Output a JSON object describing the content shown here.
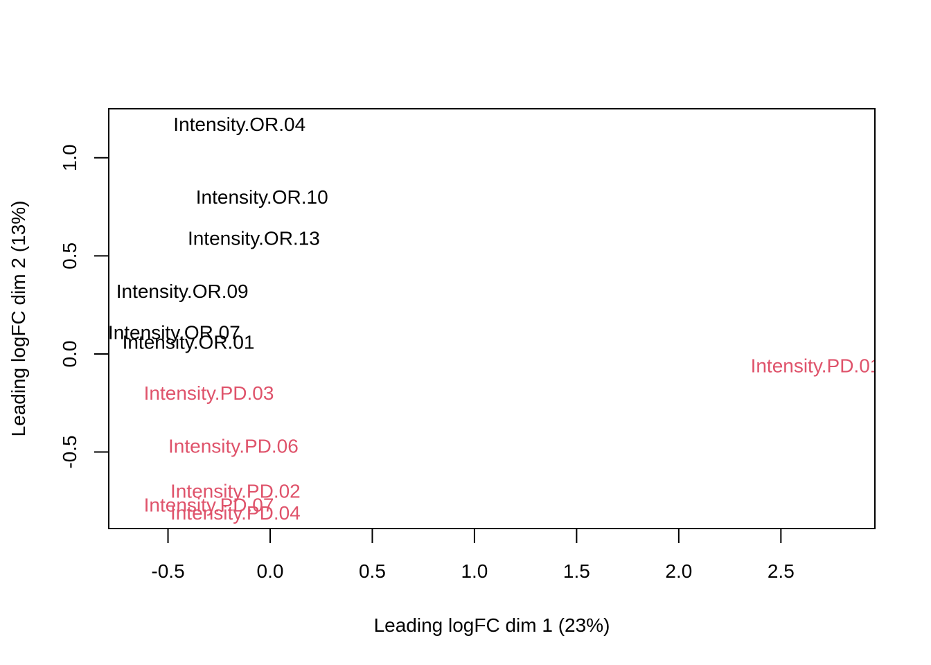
{
  "chart_data": {
    "type": "scatter",
    "title": "",
    "xlabel": "Leading logFC dim 1 (23%)",
    "ylabel": "Leading logFC dim 2 (13%)",
    "xlim": [
      -0.79,
      2.96
    ],
    "ylim": [
      -0.89,
      1.25
    ],
    "x_ticks": [
      -0.5,
      0.0,
      0.5,
      1.0,
      1.5,
      2.0,
      2.5
    ],
    "x_tick_labels": [
      "-0.5",
      "0.0",
      "0.5",
      "1.0",
      "1.5",
      "2.0",
      "2.5"
    ],
    "y_ticks": [
      -0.5,
      0.0,
      0.5,
      1.0
    ],
    "y_tick_labels": [
      "-0.5",
      "0.0",
      "0.5",
      "1.0"
    ],
    "grid": false,
    "legend": "none",
    "series": [
      {
        "name": "OR",
        "color": "#000000",
        "points": [
          {
            "label": "Intensity.OR.04",
            "x": -0.15,
            "y": 1.17
          },
          {
            "label": "Intensity.OR.10",
            "x": -0.04,
            "y": 0.8
          },
          {
            "label": "Intensity.OR.13",
            "x": -0.08,
            "y": 0.59
          },
          {
            "label": "Intensity.OR.09",
            "x": -0.43,
            "y": 0.32
          },
          {
            "label": "Intensity.OR.07",
            "x": -0.47,
            "y": 0.11
          },
          {
            "label": "Intensity.OR.01",
            "x": -0.4,
            "y": 0.06
          }
        ]
      },
      {
        "name": "PD",
        "color": "#DF536B",
        "points": [
          {
            "label": "Intensity.PD.01",
            "x": 2.67,
            "y": -0.06
          },
          {
            "label": "Intensity.PD.03",
            "x": -0.3,
            "y": -0.2
          },
          {
            "label": "Intensity.PD.06",
            "x": -0.18,
            "y": -0.47
          },
          {
            "label": "Intensity.PD.02",
            "x": -0.17,
            "y": -0.7
          },
          {
            "label": "Intensity.PD.07",
            "x": -0.3,
            "y": -0.77
          },
          {
            "label": "Intensity.PD.04",
            "x": -0.17,
            "y": -0.81
          }
        ]
      }
    ]
  }
}
